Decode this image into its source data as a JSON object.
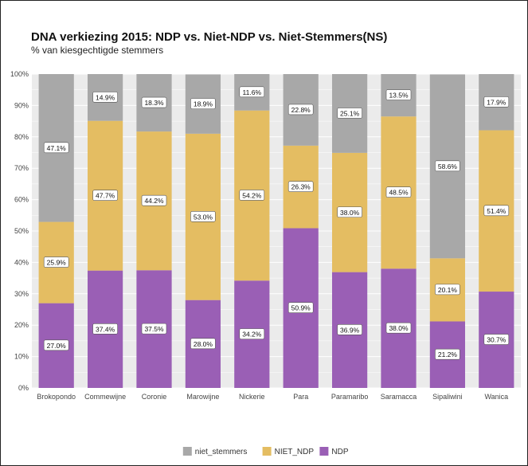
{
  "chart_data": {
    "type": "bar",
    "stacked": true,
    "title": "DNA verkiezing 2015: NDP vs. Niet-NDP vs. Niet-Stemmers(NS)",
    "subtitle": "% van kiesgechtigde stemmers",
    "xlabel": "",
    "ylabel": "",
    "ylim": [
      0,
      100
    ],
    "y_ticks": [
      "0%",
      "10%",
      "20%",
      "30%",
      "40%",
      "50%",
      "60%",
      "70%",
      "80%",
      "90%",
      "100%"
    ],
    "categories": [
      "Brokopondo",
      "Commewijne",
      "Coronie",
      "Marowijne",
      "Nickerie",
      "Para",
      "Paramaribo",
      "Saramacca",
      "Sipaliwini",
      "Wanica"
    ],
    "series": [
      {
        "name": "NDP",
        "color": "#9A5FB5",
        "values": [
          27.0,
          37.4,
          37.5,
          28.0,
          34.2,
          50.9,
          36.9,
          38.0,
          21.2,
          30.7
        ],
        "labels": [
          "27.0%",
          "37.4%",
          "37.5%",
          "28.0%",
          "34.2%",
          "50.9%",
          "36.9%",
          "38.0%",
          "21.2%",
          "30.7%"
        ]
      },
      {
        "name": "NIET_NDP",
        "color": "#E4BD62",
        "values": [
          25.9,
          47.7,
          44.2,
          53.0,
          54.2,
          26.3,
          38.0,
          48.5,
          20.1,
          51.4
        ],
        "labels": [
          "25.9%",
          "47.7%",
          "44.2%",
          "53.0%",
          "54.2%",
          "26.3%",
          "38.0%",
          "48.5%",
          "20.1%",
          "51.4%"
        ]
      },
      {
        "name": "niet_stemmers",
        "color": "#A8A8A8",
        "values": [
          47.1,
          14.9,
          18.3,
          18.9,
          11.6,
          22.8,
          25.1,
          13.5,
          58.6,
          17.9
        ],
        "labels": [
          "47.1%",
          "14.9%",
          "18.3%",
          "18.9%",
          "11.6%",
          "22.8%",
          "25.1%",
          "13.5%",
          "58.6%",
          "17.9%"
        ]
      }
    ],
    "legend": {
      "position": "bottom",
      "order": [
        "niet_stemmers",
        "NIET_NDP",
        "NDP"
      ]
    },
    "grid": true,
    "panel_background": "#EBEBEB"
  }
}
